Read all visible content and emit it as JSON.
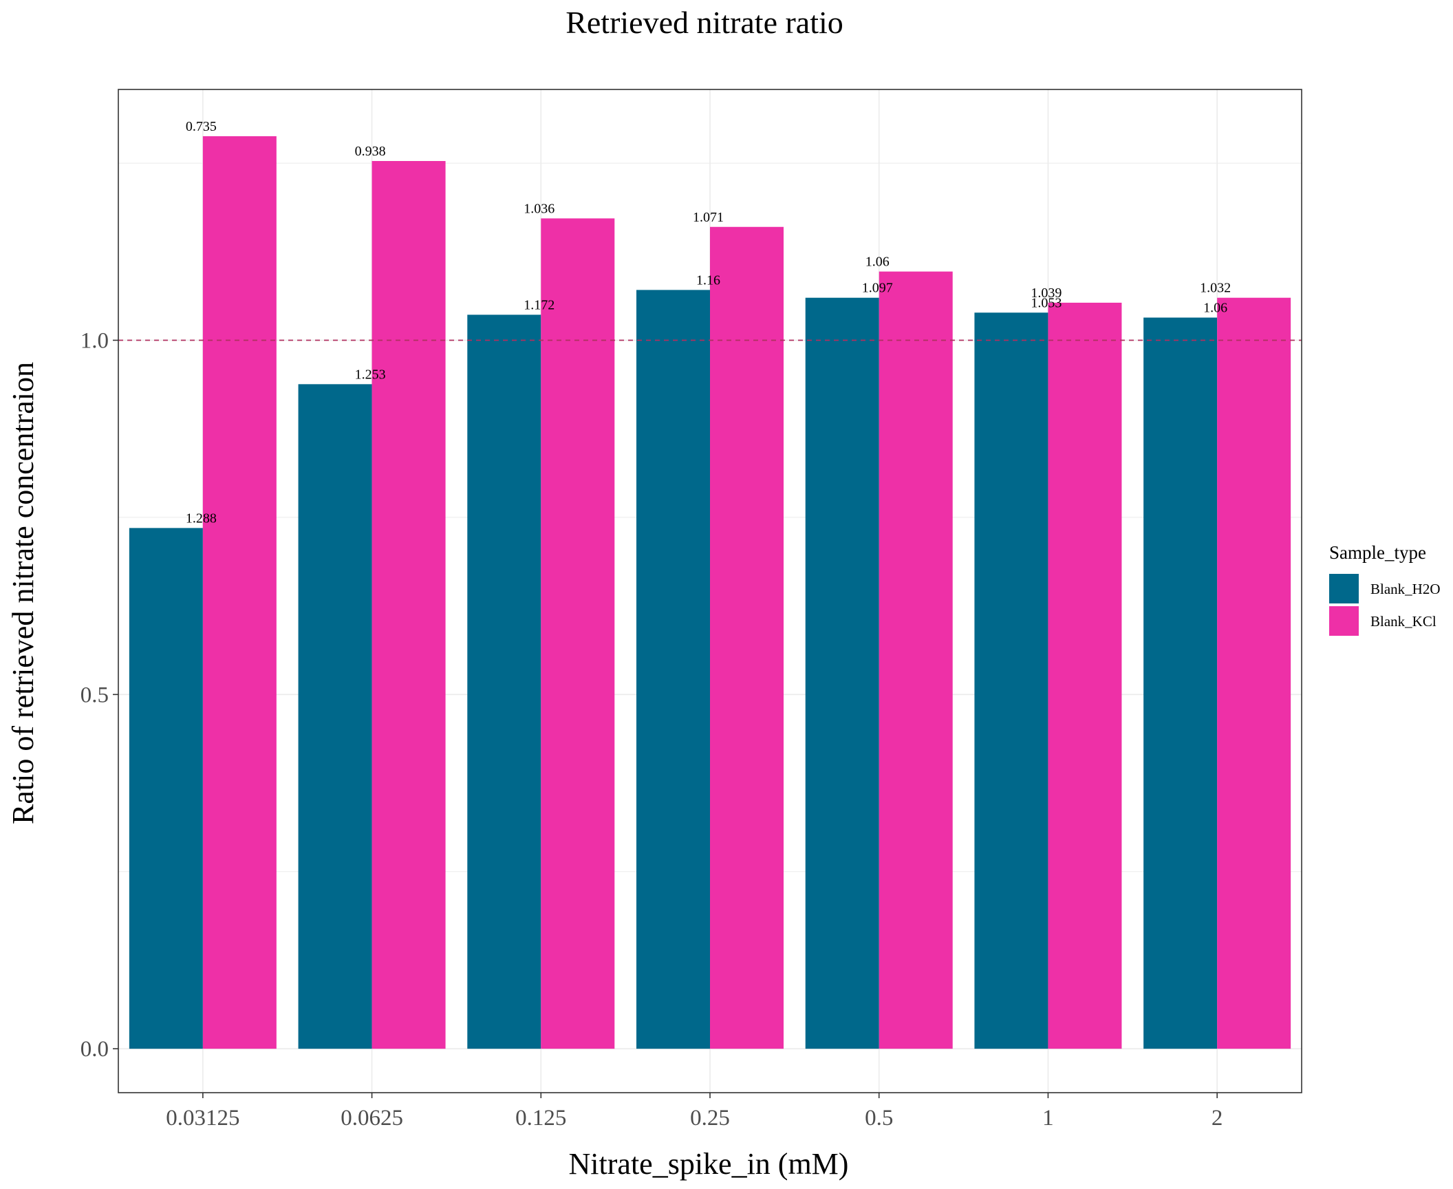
{
  "chart_data": {
    "type": "bar",
    "title": "Retrieved nitrate ratio",
    "xlabel": "Nitrate_spike_in (mM)",
    "ylabel": "Ratio of retrieved nitrate concentraion",
    "categories": [
      "0.03125",
      "0.0625",
      "0.125",
      "0.25",
      "0.5",
      "1",
      "2"
    ],
    "series": [
      {
        "name": "Blank_H2O",
        "color": "#00688b",
        "values": [
          0.735,
          0.938,
          1.036,
          1.071,
          1.06,
          1.039,
          1.032
        ]
      },
      {
        "name": "Blank_KCl",
        "color": "#ee30a7",
        "values": [
          1.288,
          1.253,
          1.172,
          1.16,
          1.097,
          1.053,
          1.06
        ]
      }
    ],
    "data_labels": [
      [
        "0.735",
        "0.938",
        "1.036",
        "1.071",
        "1.06",
        "1.039",
        "1.032"
      ],
      [
        "1.288",
        "1.253",
        "1.172",
        "1.16",
        "1.097",
        "1.053",
        "1.06"
      ]
    ],
    "ylim": [
      -0.062,
      1.354
    ],
    "yticks": [
      0.0,
      0.5,
      1.0
    ],
    "ytick_labels": [
      "0.0",
      "0.5",
      "1.0"
    ],
    "reference_line": {
      "y": 1.0,
      "style": "dashed",
      "color": "#b03060"
    },
    "legend": {
      "title": "Sample_type",
      "position": "right"
    },
    "grid": true
  }
}
